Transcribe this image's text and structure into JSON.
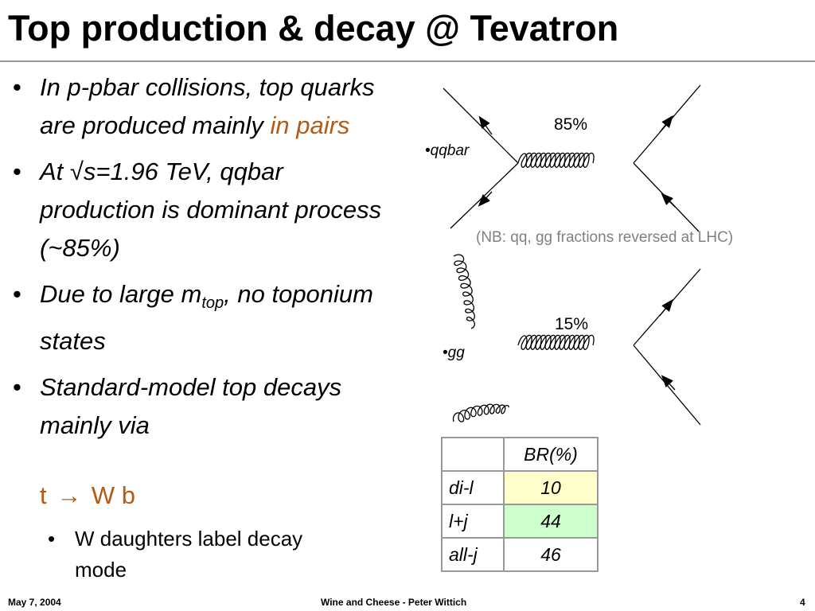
{
  "slide": {
    "title": "Top production & decay @ Tevatron",
    "bullets": [
      {
        "bullet": "•",
        "text": "In p-pbar collisions, top quarks are produced mainly ",
        "highlight": "in pairs"
      },
      {
        "bullet": "•",
        "prefix": "At ",
        "sqrt": "√",
        "text": "s=1.96 TeV, qqbar production is dominant process (~85%)"
      },
      {
        "bullet": "•",
        "text": "Due to large m",
        "subscript": "top",
        "suffix": ", no toponium states"
      },
      {
        "bullet": "•",
        "text": "Standard-model top decays mainly via"
      }
    ],
    "formula": {
      "t": "t",
      "arrow": "→",
      "rhs": "W b"
    },
    "sub_bullet": {
      "bullet": "•",
      "text": "W daughters label decay mode"
    },
    "diagram": {
      "qqbar_label": "•qqbar",
      "qqbar_percent": "85%",
      "nb_note": "(NB: qq, gg fractions reversed at LHC)",
      "gg_label": "•gg",
      "gg_percent": "15%"
    },
    "br_table": {
      "header": [
        "",
        "BR(%)"
      ],
      "rows": [
        {
          "label": "di-l",
          "value": "10",
          "color": "#ffffcc"
        },
        {
          "label": "l+j",
          "value": "44",
          "color": "#ccffcc"
        },
        {
          "label": "all-j",
          "value": "46",
          "color": "#ffffff"
        }
      ]
    },
    "accent_color": "#b35a15",
    "footer": {
      "date": "May 7, 2004",
      "center": "Wine and Cheese - Peter Wittich",
      "page": "4"
    }
  }
}
